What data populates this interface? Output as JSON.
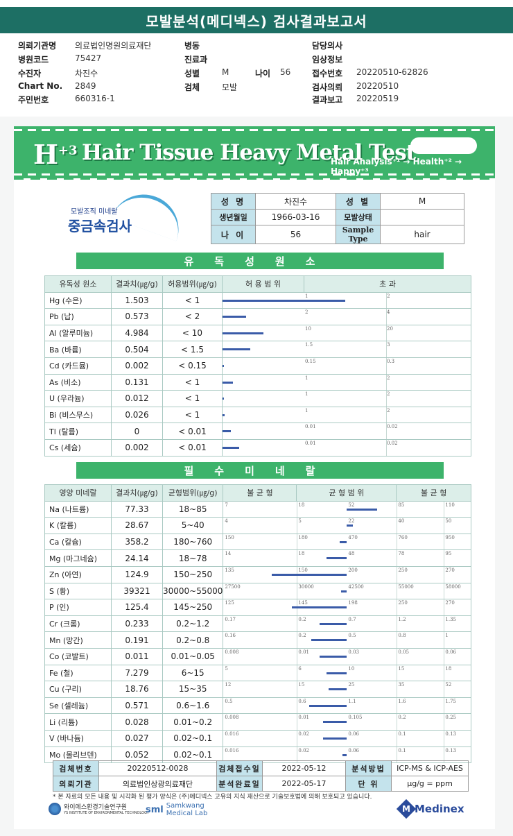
{
  "header": {
    "title": "모발분석(메디넥스) 검사결과보고서"
  },
  "info": {
    "left": [
      {
        "label": "의뢰기관명",
        "value": "의료법인명원의료재단"
      },
      {
        "label": "병원코드",
        "value": "75427"
      },
      {
        "label": "수진자",
        "value": "차진수"
      },
      {
        "label": "Chart No.",
        "value": "2849"
      },
      {
        "label": "주민번호",
        "value": "660316-1"
      }
    ],
    "middle": [
      {
        "label": "병동",
        "value": ""
      },
      {
        "label": "진료과",
        "value": ""
      },
      {
        "label": "성별",
        "value": "M"
      },
      {
        "label": "검체",
        "value": "모발"
      }
    ],
    "age": {
      "label": "나이",
      "value": "56"
    },
    "right": [
      {
        "label": "담당의사",
        "value": ""
      },
      {
        "label": "임상정보",
        "value": ""
      },
      {
        "label": "접수번호",
        "value": "20220510-62826"
      },
      {
        "label": "검사의뢰",
        "value": "20220510"
      },
      {
        "label": "결과보고",
        "value": "20220519"
      }
    ]
  },
  "banner": {
    "h_mark": "H",
    "h_sup": "+3",
    "title": "Hair Tissue Heavy Metal Test",
    "tagline": "Hair Analysis⁺¹ → Health⁺² → Happy⁺³"
  },
  "logo": {
    "small": "모발조직 미네랄",
    "big": "중금속검사"
  },
  "patient": {
    "name_label": "성 명",
    "name": "차진수",
    "sex_label": "성 별",
    "sex": "M",
    "dob_label": "생년월일",
    "dob": "1966-03-16",
    "hair_state_label": "모발상태",
    "hair_state": "",
    "age_label": "나 이",
    "age": "56",
    "sample_label": "Sample Type",
    "sample": "hair"
  },
  "toxic": {
    "section_title": "유독성원소",
    "headers": [
      "유독성 원소",
      "결과치(㎍/g)",
      "허용범위(㎍/g)",
      "허 용 범 위",
      "초 과"
    ],
    "rows": [
      {
        "element": "Hg (수은)",
        "value": "1.503",
        "range": "< 1",
        "m1": "1",
        "m2": "2",
        "bar": 1.503,
        "limit": 1
      },
      {
        "element": "Pb (납)",
        "value": "0.573",
        "range": "< 2",
        "m1": "2",
        "m2": "4",
        "bar": 0.573,
        "limit": 2
      },
      {
        "element": "Al (알루미늄)",
        "value": "4.984",
        "range": "< 10",
        "m1": "10",
        "m2": "20",
        "bar": 4.984,
        "limit": 10
      },
      {
        "element": "Ba (바륨)",
        "value": "0.504",
        "range": "< 1.5",
        "m1": "1.5",
        "m2": "3",
        "bar": 0.504,
        "limit": 1.5
      },
      {
        "element": "Cd (카드뮴)",
        "value": "0.002",
        "range": "< 0.15",
        "m1": "0.15",
        "m2": "0.3",
        "bar": 0.002,
        "limit": 0.15
      },
      {
        "element": "As (비소)",
        "value": "0.131",
        "range": "< 1",
        "m1": "1",
        "m2": "2",
        "bar": 0.131,
        "limit": 1
      },
      {
        "element": "U (우라늄)",
        "value": "0.012",
        "range": "< 1",
        "m1": "1",
        "m2": "2",
        "bar": 0.012,
        "limit": 1
      },
      {
        "element": "Bi (비스무스)",
        "value": "0.026",
        "range": "< 1",
        "m1": "1",
        "m2": "2",
        "bar": 0.026,
        "limit": 1
      },
      {
        "element": "Tl (탈륨)",
        "value": "0",
        "range": "< 0.01",
        "m1": "0.01",
        "m2": "0.02",
        "bar": 0.001,
        "limit": 0.01
      },
      {
        "element": "Cs (세슘)",
        "value": "0.002",
        "range": "< 0.01",
        "m1": "0.01",
        "m2": "0.02",
        "bar": 0.002,
        "limit": 0.01
      }
    ]
  },
  "minerals": {
    "section_title": "필수미네랄",
    "headers": [
      "영양 미네랄",
      "결과치(㎍/g)",
      "균형범위(㎍/g)",
      "불 균 형",
      "균 형 범 위",
      "불 균 형"
    ],
    "rows": [
      {
        "element": "Na (나트륨)",
        "value": "77.33",
        "range": "18~85",
        "marks": [
          "7",
          "18",
          "52",
          "85",
          "110"
        ],
        "bar": 0.61
      },
      {
        "element": "K (칼륨)",
        "value": "28.67",
        "range": "5~40",
        "marks": [
          "4",
          "5",
          "22",
          "40",
          "50"
        ],
        "bar": 0.12
      },
      {
        "element": "Ca (칼슘)",
        "value": "358.2",
        "range": "180~760",
        "marks": [
          "150",
          "180",
          "470",
          "760",
          "950"
        ],
        "bar": -0.15
      },
      {
        "element": "Mg (마그네슘)",
        "value": "24.14",
        "range": "18~78",
        "marks": [
          "14",
          "18",
          "48",
          "78",
          "95"
        ],
        "bar": -0.41
      },
      {
        "element": "Zn (아연)",
        "value": "124.9",
        "range": "150~250",
        "marks": [
          "135",
          "150",
          "200",
          "250",
          "270"
        ],
        "bar": -1.5
      },
      {
        "element": "S (황)",
        "value": "39321",
        "range": "30000~55000",
        "marks": [
          "27500",
          "30000",
          "42500",
          "55000",
          "58000"
        ],
        "bar": -0.12
      },
      {
        "element": "P (인)",
        "value": "125.4",
        "range": "145~250",
        "marks": [
          "125",
          "145",
          "198",
          "250",
          "270"
        ],
        "bar": -1.1
      },
      {
        "element": "Cr (크롬)",
        "value": "0.233",
        "range": "0.2~1.2",
        "marks": [
          "0.17",
          "0.2",
          "0.7",
          "1.2",
          "1.35"
        ],
        "bar": -0.55
      },
      {
        "element": "Mn (망간)",
        "value": "0.191",
        "range": "0.2~0.8",
        "marks": [
          "0.16",
          "0.2",
          "0.5",
          "0.8",
          "1"
        ],
        "bar": -0.72
      },
      {
        "element": "Co (코발트)",
        "value": "0.011",
        "range": "0.01~0.05",
        "marks": [
          "0.008",
          "0.01",
          "0.03",
          "0.05",
          "0.06"
        ],
        "bar": -0.55
      },
      {
        "element": "Fe (철)",
        "value": "7.279",
        "range": "6~15",
        "marks": [
          "5",
          "6",
          "10",
          "15",
          "18"
        ],
        "bar": -0.41
      },
      {
        "element": "Cu (구리)",
        "value": "18.76",
        "range": "15~35",
        "marks": [
          "12",
          "15",
          "25",
          "35",
          "52"
        ],
        "bar": -0.36
      },
      {
        "element": "Se (셀레늄)",
        "value": "0.571",
        "range": "0.6~1.6",
        "marks": [
          "0.5",
          "0.6",
          "1.1",
          "1.6",
          "1.75"
        ],
        "bar": -0.76
      },
      {
        "element": "Li (리튬)",
        "value": "0.028",
        "range": "0.01~0.2",
        "marks": [
          "0.008",
          "0.01",
          "0.105",
          "0.2",
          "0.25"
        ],
        "bar": -0.48
      },
      {
        "element": "V (바나듐)",
        "value": "0.027",
        "range": "0.02~0.1",
        "marks": [
          "0.016",
          "0.02",
          "0.06",
          "0.1",
          "0.13"
        ],
        "bar": -0.48
      },
      {
        "element": "Mo (몰리브덴)",
        "value": "0.052",
        "range": "0.02~0.1",
        "marks": [
          "0.016",
          "0.02",
          "0.06",
          "0.1",
          "0.13"
        ],
        "bar": -0.09
      }
    ]
  },
  "bottom": {
    "test_no_label": "검체번호",
    "test_no": "20220512-0028",
    "recv_label": "검체접수일",
    "recv": "2022-05-12",
    "method_label": "분석방법",
    "method": "ICP-MS & ICP-AES",
    "org_label": "의뢰기관",
    "org": "의료법인상광의료재단",
    "done_label": "분석완료일",
    "done": "2022-05-17",
    "unit_label": "단 위",
    "unit": "μg/g = ppm"
  },
  "footnote": "* 본 자료의 모든 내용 및 시각화 된 평가 양식은 (주)메디넥스 고유의 지식 재산으로 기술보호법에 의해 보호되고 있습니다.",
  "logos": {
    "a": "와이에스환경기술연구원",
    "a_sub": "YS INSTITUTE OF ENVIRONMENTAL TECHNOLOGY",
    "b_mark": "sml",
    "b": "Samkwang Medical Lab",
    "c": "Medinex"
  }
}
